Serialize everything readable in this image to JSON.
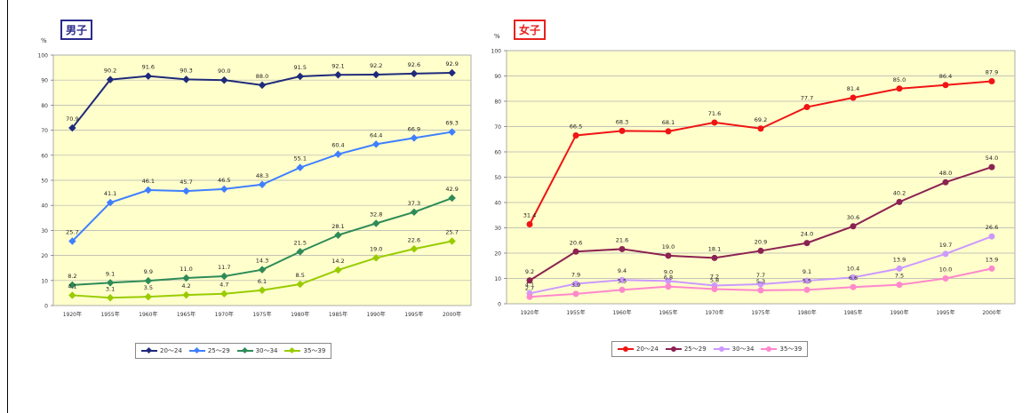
{
  "chart_data": [
    {
      "type": "line",
      "tag": "男子",
      "tag_color": "#2a2a8c",
      "ylabel": "%",
      "ylim": [
        0,
        100
      ],
      "yticks": [
        0,
        10,
        20,
        30,
        40,
        50,
        60,
        70,
        80,
        90,
        100
      ],
      "categories": [
        "1920年",
        "1955年",
        "1960年",
        "1965年",
        "1970年",
        "1975年",
        "1980年",
        "1985年",
        "1990年",
        "1995年",
        "2000年"
      ],
      "grid": true,
      "legend_position": "bottom",
      "series": [
        {
          "name": "20～24",
          "color": "#1f2a7a",
          "marker": "diamond",
          "values": [
            70.9,
            90.2,
            91.6,
            90.3,
            90.0,
            88.0,
            91.5,
            92.1,
            92.2,
            92.6,
            92.9
          ],
          "labels": [
            "70.9",
            "90.2",
            "91.6",
            "90.3",
            "90.0",
            "88.0",
            "91.5",
            "92.1",
            "92.2",
            "92.6",
            "92.9"
          ]
        },
        {
          "name": "25～29",
          "color": "#3f7fff",
          "marker": "diamond",
          "values": [
            25.7,
            41.1,
            46.1,
            45.7,
            46.5,
            48.3,
            55.1,
            60.4,
            64.4,
            66.9,
            69.3
          ],
          "labels": [
            "25.7",
            "41.1",
            "46.1",
            "45.7",
            "46.5",
            "48.3",
            "55.1",
            "60.4",
            "64.4",
            "66.9",
            "69.3"
          ]
        },
        {
          "name": "30～34",
          "color": "#2e8b57",
          "marker": "diamond",
          "values": [
            8.2,
            9.1,
            9.9,
            11.0,
            11.7,
            14.3,
            21.5,
            28.1,
            32.8,
            37.3,
            42.9
          ],
          "labels": [
            "8.2",
            "9.1",
            "9.9",
            "11.0",
            "11.7",
            "14.3",
            "21.5",
            "28.1",
            "32.8",
            "37.3",
            "42.9"
          ]
        },
        {
          "name": "35～39",
          "color": "#99cc00",
          "marker": "diamond",
          "values": [
            4.1,
            3.1,
            3.5,
            4.2,
            4.7,
            6.1,
            8.5,
            14.2,
            19.0,
            22.6,
            25.7
          ],
          "labels": [
            "4.1",
            "3.1",
            "3.5",
            "4.2",
            "4.7",
            "6.1",
            "8.5",
            "14.2",
            "19.0",
            "22.6",
            "25.7"
          ]
        }
      ]
    },
    {
      "type": "line",
      "tag": "女子",
      "tag_color": "#e8211c",
      "ylabel": "%",
      "ylim": [
        0,
        100
      ],
      "yticks": [
        0,
        10,
        20,
        30,
        40,
        50,
        60,
        70,
        80,
        90,
        100
      ],
      "categories": [
        "1920年",
        "1955年",
        "1960年",
        "1965年",
        "1970年",
        "1975年",
        "1980年",
        "1985年",
        "1990年",
        "1995年",
        "2000年"
      ],
      "grid": true,
      "legend_position": "bottom",
      "series": [
        {
          "name": "20～24",
          "color": "#f01414",
          "marker": "circle",
          "values": [
            31.4,
            66.5,
            68.3,
            68.1,
            71.6,
            69.2,
            77.7,
            81.4,
            85.0,
            86.4,
            87.9
          ],
          "labels": [
            "31.4",
            "66.5",
            "68.3",
            "68.1",
            "71.6",
            "69.2",
            "77.7",
            "81.4",
            "85.0",
            "86.4",
            "87.9"
          ]
        },
        {
          "name": "25～29",
          "color": "#8b2252",
          "marker": "circle",
          "values": [
            9.2,
            20.6,
            21.6,
            19.0,
            18.1,
            20.9,
            24.0,
            30.6,
            40.2,
            48.0,
            54.0
          ],
          "labels": [
            "9.2",
            "20.6",
            "21.6",
            "19.0",
            "18.1",
            "20.9",
            "24.0",
            "30.6",
            "40.2",
            "48.0",
            "54.0"
          ]
        },
        {
          "name": "30～34",
          "color": "#cc99ff",
          "marker": "circle",
          "values": [
            4.1,
            7.9,
            9.4,
            9.0,
            7.2,
            7.7,
            9.1,
            10.4,
            13.9,
            19.7,
            26.6
          ],
          "labels": [
            "4.1",
            "7.9",
            "9.4",
            "9.0",
            "7.2",
            "7.7",
            "9.1",
            "10.4",
            "13.9",
            "19.7",
            "26.6"
          ]
        },
        {
          "name": "35～39",
          "color": "#ff88cc",
          "marker": "circle",
          "values": [
            2.7,
            3.9,
            5.5,
            6.8,
            5.8,
            5.3,
            5.5,
            6.6,
            7.5,
            10.0,
            13.9
          ],
          "labels": [
            "2.7",
            "3.9",
            "5.5",
            "6.8",
            "5.8",
            "5.3",
            "5.5",
            "6.6",
            "7.5",
            "10.0",
            "13.9"
          ]
        }
      ]
    }
  ]
}
